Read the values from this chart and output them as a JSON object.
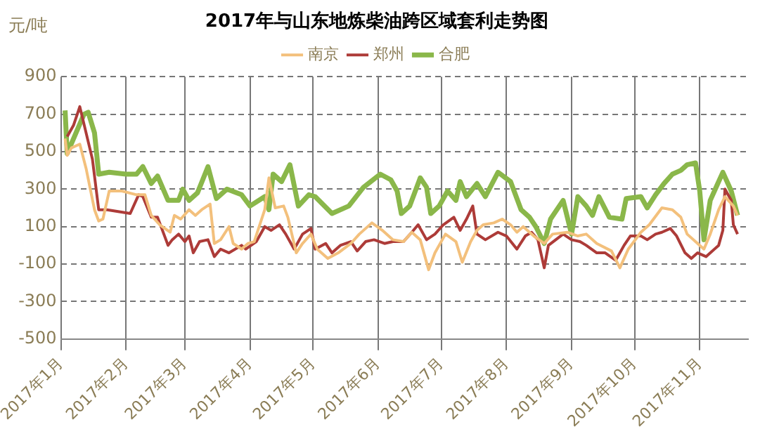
{
  "chart_data": {
    "type": "line",
    "title": "2017年与山东地炼柴油跨区域套利走势图",
    "ylabel": "元/吨",
    "xlim": [
      "2017-01-01",
      "2017-11-24"
    ],
    "xticks": [
      {
        "value": "2017-01-01",
        "label": "2017年1月"
      },
      {
        "value": "2017-02-01",
        "label": "2017年2月"
      },
      {
        "value": "2017-03-01",
        "label": "2017年3月"
      },
      {
        "value": "2017-04-01",
        "label": "2017年4月"
      },
      {
        "value": "2017-05-01",
        "label": "2017年5月"
      },
      {
        "value": "2017-06-01",
        "label": "2017年6月"
      },
      {
        "value": "2017-07-01",
        "label": "2017年7月"
      },
      {
        "value": "2017-08-01",
        "label": "2017年8月"
      },
      {
        "value": "2017-09-01",
        "label": "2017年9月"
      },
      {
        "value": "2017-10-01",
        "label": "2017年10月"
      },
      {
        "value": "2017-11-01",
        "label": "2017年11月"
      }
    ],
    "ylim": [
      -500,
      900
    ],
    "yticks": [
      -500,
      -300,
      -100,
      100,
      300,
      500,
      700,
      900
    ],
    "grid": true,
    "legend": "top",
    "marker": "none",
    "line_style": "solid",
    "series": [
      {
        "name": "南京",
        "color": "#f3c07c",
        "x": [
          "2017-01-03",
          "2017-01-04",
          "2017-01-06",
          "2017-01-10",
          "2017-01-13",
          "2017-01-17",
          "2017-01-19",
          "2017-01-21",
          "2017-01-24",
          "2017-01-30",
          "2017-02-06",
          "2017-02-10",
          "2017-02-13",
          "2017-02-17",
          "2017-02-22",
          "2017-02-24",
          "2017-02-27",
          "2017-03-03",
          "2017-03-06",
          "2017-03-09",
          "2017-03-13",
          "2017-03-15",
          "2017-03-18",
          "2017-03-22",
          "2017-03-24",
          "2017-03-28",
          "2017-03-31",
          "2017-04-03",
          "2017-04-08",
          "2017-04-10",
          "2017-04-13",
          "2017-04-17",
          "2017-04-19",
          "2017-04-23",
          "2017-04-26",
          "2017-04-30",
          "2017-05-03",
          "2017-05-08",
          "2017-05-13",
          "2017-05-19",
          "2017-05-23",
          "2017-05-29",
          "2017-06-03",
          "2017-06-08",
          "2017-06-13",
          "2017-06-17",
          "2017-06-21",
          "2017-06-25",
          "2017-06-28",
          "2017-07-03",
          "2017-07-08",
          "2017-07-11",
          "2017-07-15",
          "2017-07-18",
          "2017-07-21",
          "2017-07-26",
          "2017-07-30",
          "2017-08-03",
          "2017-08-06",
          "2017-08-09",
          "2017-08-14",
          "2017-08-19",
          "2017-08-23",
          "2017-08-30",
          "2017-09-04",
          "2017-09-08",
          "2017-09-13",
          "2017-09-20",
          "2017-09-24",
          "2017-09-28",
          "2017-10-04",
          "2017-10-08",
          "2017-10-14",
          "2017-10-19",
          "2017-10-23",
          "2017-10-26",
          "2017-10-31",
          "2017-11-03",
          "2017-11-06",
          "2017-11-10",
          "2017-11-13",
          "2017-11-17",
          "2017-11-19"
        ],
        "values": [
          570,
          480,
          520,
          540,
          410,
          190,
          130,
          140,
          290,
          290,
          270,
          270,
          160,
          110,
          70,
          160,
          140,
          190,
          160,
          190,
          220,
          10,
          30,
          100,
          10,
          -20,
          10,
          20,
          190,
          360,
          200,
          210,
          150,
          -40,
          10,
          60,
          -20,
          -70,
          -40,
          10,
          60,
          120,
          80,
          30,
          20,
          70,
          30,
          -130,
          -40,
          60,
          20,
          -90,
          20,
          80,
          110,
          120,
          140,
          110,
          70,
          100,
          50,
          10,
          60,
          70,
          50,
          60,
          10,
          -30,
          -120,
          -20,
          70,
          110,
          200,
          190,
          150,
          60,
          10,
          -20,
          60,
          190,
          260,
          210,
          160
        ]
      },
      {
        "name": "郑州",
        "color": "#ad3b38",
        "x": [
          "2017-01-04",
          "2017-01-07",
          "2017-01-10",
          "2017-01-16",
          "2017-01-19",
          "2017-01-23",
          "2017-02-03",
          "2017-02-07",
          "2017-02-09",
          "2017-02-13",
          "2017-02-16",
          "2017-02-21",
          "2017-02-23",
          "2017-02-26",
          "2017-03-01",
          "2017-03-03",
          "2017-03-05",
          "2017-03-08",
          "2017-03-12",
          "2017-03-15",
          "2017-03-18",
          "2017-03-22",
          "2017-03-28",
          "2017-03-30",
          "2017-04-04",
          "2017-04-08",
          "2017-04-11",
          "2017-04-15",
          "2017-04-18",
          "2017-04-22",
          "2017-04-26",
          "2017-04-30",
          "2017-05-02",
          "2017-05-07",
          "2017-05-10",
          "2017-05-14",
          "2017-05-19",
          "2017-05-22",
          "2017-05-26",
          "2017-05-30",
          "2017-06-04",
          "2017-06-08",
          "2017-06-13",
          "2017-06-17",
          "2017-06-20",
          "2017-06-24",
          "2017-06-28",
          "2017-07-02",
          "2017-07-07",
          "2017-07-10",
          "2017-07-13",
          "2017-07-16",
          "2017-07-18",
          "2017-07-22",
          "2017-07-28",
          "2017-08-01",
          "2017-08-06",
          "2017-08-10",
          "2017-08-13",
          "2017-08-16",
          "2017-08-19",
          "2017-08-21",
          "2017-08-28",
          "2017-09-01",
          "2017-09-05",
          "2017-09-08",
          "2017-09-13",
          "2017-09-17",
          "2017-09-22",
          "2017-09-26",
          "2017-09-29",
          "2017-10-04",
          "2017-10-07",
          "2017-10-11",
          "2017-10-14",
          "2017-10-18",
          "2017-10-21",
          "2017-10-25",
          "2017-10-28",
          "2017-10-31",
          "2017-11-04",
          "2017-11-10",
          "2017-11-12",
          "2017-11-13",
          "2017-11-16",
          "2017-11-17",
          "2017-11-19"
        ],
        "values": [
          580,
          640,
          740,
          460,
          190,
          190,
          170,
          270,
          260,
          150,
          150,
          0,
          30,
          60,
          20,
          50,
          -40,
          20,
          30,
          -60,
          -20,
          -40,
          0,
          -20,
          20,
          100,
          80,
          110,
          60,
          -20,
          60,
          90,
          -20,
          10,
          -40,
          0,
          20,
          -30,
          20,
          30,
          10,
          20,
          20,
          70,
          110,
          30,
          60,
          110,
          150,
          80,
          140,
          210,
          60,
          30,
          70,
          50,
          -20,
          50,
          70,
          30,
          -120,
          0,
          60,
          30,
          20,
          0,
          -40,
          -40,
          -80,
          0,
          50,
          50,
          30,
          60,
          70,
          90,
          50,
          -40,
          -70,
          -40,
          -60,
          0,
          80,
          300,
          240,
          110,
          60
        ]
      },
      {
        "name": "合肥",
        "color": "#8ab74a",
        "x": [
          "2017-01-03",
          "2017-01-04",
          "2017-01-12",
          "2017-01-14",
          "2017-01-17",
          "2017-01-19",
          "2017-01-24",
          "2017-02-01",
          "2017-02-06",
          "2017-02-09",
          "2017-02-13",
          "2017-02-16",
          "2017-02-21",
          "2017-02-26",
          "2017-02-28",
          "2017-03-03",
          "2017-03-07",
          "2017-03-12",
          "2017-03-16",
          "2017-03-21",
          "2017-03-28",
          "2017-04-01",
          "2017-04-08",
          "2017-04-10",
          "2017-04-12",
          "2017-04-16",
          "2017-04-20",
          "2017-04-24",
          "2017-04-29",
          "2017-05-02",
          "2017-05-10",
          "2017-05-18",
          "2017-05-25",
          "2017-06-02",
          "2017-06-07",
          "2017-06-10",
          "2017-06-12",
          "2017-06-16",
          "2017-06-21",
          "2017-06-24",
          "2017-06-26",
          "2017-06-30",
          "2017-07-04",
          "2017-07-08",
          "2017-07-10",
          "2017-07-13",
          "2017-07-18",
          "2017-07-22",
          "2017-07-28",
          "2017-08-03",
          "2017-08-08",
          "2017-08-12",
          "2017-08-15",
          "2017-08-19",
          "2017-08-22",
          "2017-08-28",
          "2017-09-01",
          "2017-09-04",
          "2017-09-08",
          "2017-09-11",
          "2017-09-14",
          "2017-09-19",
          "2017-09-25",
          "2017-09-27",
          "2017-10-04",
          "2017-10-07",
          "2017-10-11",
          "2017-10-15",
          "2017-10-19",
          "2017-10-23",
          "2017-10-26",
          "2017-10-30",
          "2017-11-01",
          "2017-11-03",
          "2017-11-06",
          "2017-11-12",
          "2017-11-16",
          "2017-11-19"
        ],
        "values": [
          720,
          490,
          700,
          710,
          600,
          380,
          390,
          380,
          380,
          420,
          330,
          370,
          240,
          240,
          300,
          240,
          280,
          420,
          250,
          300,
          270,
          210,
          260,
          190,
          380,
          340,
          430,
          210,
          270,
          260,
          170,
          210,
          310,
          380,
          350,
          290,
          170,
          210,
          360,
          310,
          170,
          210,
          290,
          240,
          340,
          260,
          330,
          260,
          390,
          340,
          190,
          150,
          100,
          10,
          140,
          240,
          60,
          260,
          210,
          160,
          260,
          150,
          140,
          250,
          260,
          200,
          270,
          330,
          380,
          400,
          430,
          440,
          290,
          30,
          240,
          390,
          290,
          160
        ]
      }
    ]
  }
}
